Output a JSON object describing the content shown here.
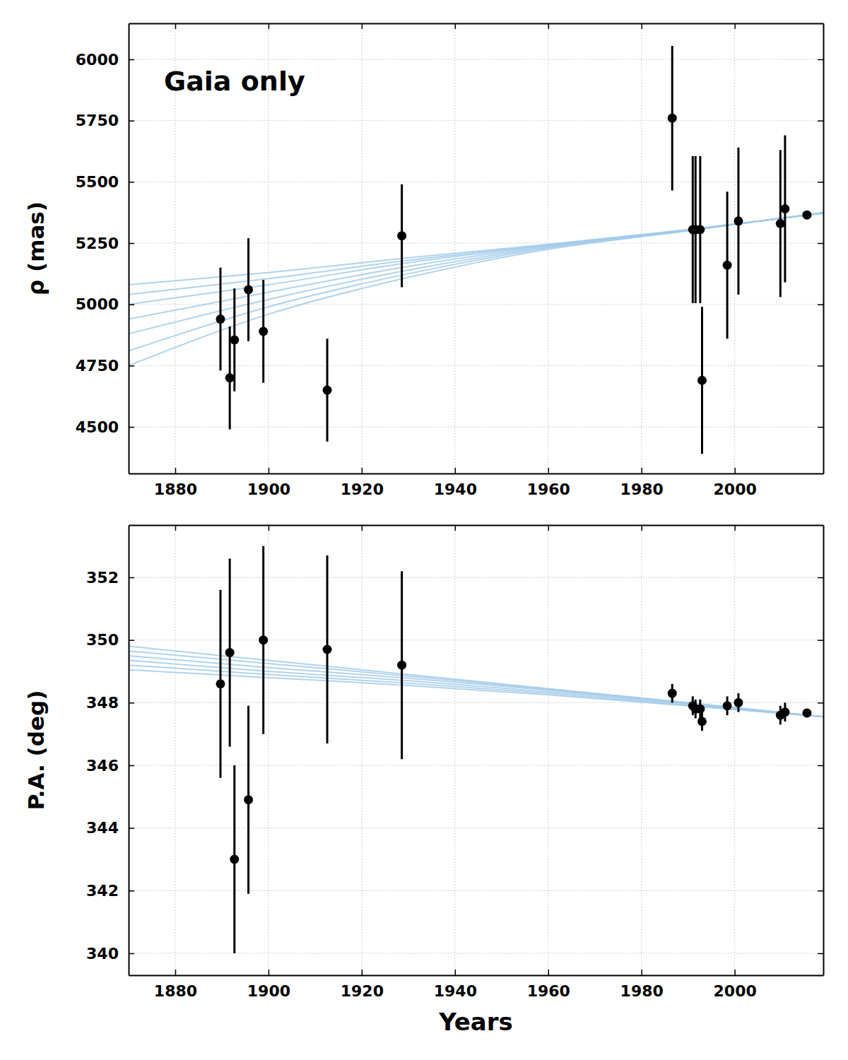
{
  "chart_data": [
    {
      "type": "scatter",
      "annotation": "Gaia only",
      "y_label": "ρ (mas)",
      "xlim": [
        1870,
        2019
      ],
      "xticks": [
        1880,
        1900,
        1920,
        1940,
        1960,
        1980,
        2000
      ],
      "ylim": [
        4310,
        6147
      ],
      "yticks": [
        4500,
        4750,
        5000,
        5250,
        5500,
        5750,
        6000
      ],
      "grid": true,
      "color": "#000000",
      "marker": "circle",
      "x": [
        1889.7,
        1891.7,
        1892.7,
        1895.7,
        1898.9,
        1912.6,
        1928.6,
        1986.6,
        1991.0,
        1991.6,
        1992.6,
        1993.0,
        1998.4,
        2000.8,
        2009.8,
        2010.8,
        2015.5
      ],
      "values": [
        4940,
        4700,
        4855,
        5060,
        4890,
        4650,
        5280,
        5760,
        5305,
        5305,
        5305,
        4690,
        5160,
        5340,
        5330,
        5390,
        5365
      ],
      "errors": [
        210,
        210,
        210,
        210,
        210,
        210,
        210,
        295,
        300,
        300,
        300,
        300,
        300,
        300,
        300,
        300,
        5
      ],
      "series": [
        {
          "type": "line",
          "color": "#a3cbea",
          "x": [
            1870,
            1900,
            1930,
            1960,
            1990,
            2019
          ],
          "values": [
            4750,
            4960,
            5110,
            5225,
            5300,
            5375
          ]
        },
        {
          "type": "line",
          "color": "#a3cbea",
          "x": [
            1870,
            1900,
            1930,
            1960,
            1990,
            2019
          ],
          "values": [
            4810,
            4990,
            5125,
            5230,
            5301,
            5374
          ]
        },
        {
          "type": "line",
          "color": "#a3cbea",
          "x": [
            1870,
            1900,
            1930,
            1960,
            1990,
            2019
          ],
          "values": [
            4880,
            5020,
            5140,
            5234,
            5302,
            5374
          ]
        },
        {
          "type": "line",
          "color": "#a3cbea",
          "x": [
            1870,
            1900,
            1930,
            1960,
            1990,
            2019
          ],
          "values": [
            4940,
            5050,
            5155,
            5238,
            5303,
            5373
          ]
        },
        {
          "type": "line",
          "color": "#a3cbea",
          "x": [
            1870,
            1900,
            1930,
            1960,
            1990,
            2019
          ],
          "values": [
            5000,
            5080,
            5170,
            5241,
            5304,
            5373
          ]
        },
        {
          "type": "line",
          "color": "#a3cbea",
          "x": [
            1870,
            1900,
            1930,
            1960,
            1990,
            2019
          ],
          "values": [
            5040,
            5105,
            5180,
            5243,
            5305,
            5372
          ]
        },
        {
          "type": "line",
          "color": "#a3cbea",
          "x": [
            1870,
            1900,
            1930,
            1960,
            1990,
            2019
          ],
          "values": [
            5080,
            5130,
            5190,
            5245,
            5305,
            5372
          ]
        }
      ]
    },
    {
      "type": "scatter",
      "x_label": "Years",
      "y_label": "P.A. (deg)",
      "xlim": [
        1870,
        2019
      ],
      "xticks": [
        1880,
        1900,
        1920,
        1940,
        1960,
        1980,
        2000
      ],
      "ylim": [
        339.3,
        353.67
      ],
      "yticks": [
        340,
        342,
        344,
        346,
        348,
        350,
        352
      ],
      "grid": true,
      "color": "#000000",
      "marker": "circle",
      "x": [
        1889.7,
        1891.7,
        1892.7,
        1895.7,
        1898.9,
        1912.6,
        1928.6,
        1986.6,
        1991.0,
        1991.6,
        1992.6,
        1993.0,
        1998.4,
        2000.8,
        2009.8,
        2010.8,
        2015.5
      ],
      "values": [
        348.6,
        349.6,
        343.0,
        344.9,
        350.0,
        349.7,
        349.2,
        348.3,
        347.9,
        347.8,
        347.8,
        347.4,
        347.9,
        348.0,
        347.6,
        347.7,
        347.67
      ],
      "errors": [
        3,
        3,
        3,
        3,
        3,
        3,
        3,
        0.3,
        0.3,
        0.3,
        0.3,
        0.3,
        0.3,
        0.3,
        0.3,
        0.3,
        0.05
      ],
      "series": [
        {
          "type": "line",
          "color": "#a3cbea",
          "x": [
            1870,
            1900,
            1930,
            1960,
            1990,
            2019
          ],
          "values": [
            349.05,
            348.8,
            348.55,
            348.25,
            347.9,
            347.55
          ]
        },
        {
          "type": "line",
          "color": "#a3cbea",
          "x": [
            1870,
            1900,
            1930,
            1960,
            1990,
            2019
          ],
          "values": [
            349.2,
            348.9,
            348.62,
            348.3,
            347.92,
            347.55
          ]
        },
        {
          "type": "line",
          "color": "#a3cbea",
          "x": [
            1870,
            1900,
            1930,
            1960,
            1990,
            2019
          ],
          "values": [
            349.35,
            349.0,
            348.7,
            348.35,
            347.95,
            347.55
          ]
        },
        {
          "type": "line",
          "color": "#a3cbea",
          "x": [
            1870,
            1900,
            1930,
            1960,
            1990,
            2019
          ],
          "values": [
            349.5,
            349.12,
            348.78,
            348.4,
            347.97,
            347.55
          ]
        },
        {
          "type": "line",
          "color": "#a3cbea",
          "x": [
            1870,
            1900,
            1930,
            1960,
            1990,
            2019
          ],
          "values": [
            349.65,
            349.25,
            348.85,
            348.43,
            347.99,
            347.55
          ]
        },
        {
          "type": "line",
          "color": "#a3cbea",
          "x": [
            1870,
            1900,
            1930,
            1960,
            1990,
            2019
          ],
          "values": [
            349.8,
            349.35,
            348.9,
            348.45,
            348.0,
            347.55
          ]
        }
      ]
    }
  ]
}
